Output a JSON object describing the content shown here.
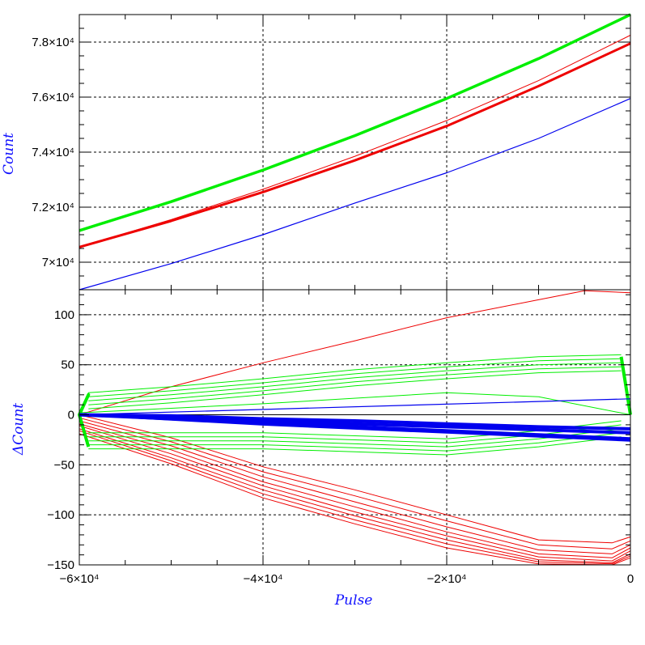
{
  "chart_data": [
    {
      "type": "line",
      "panel": "top",
      "title": "",
      "xlabel": "",
      "ylabel": "Count",
      "xlim": [
        -60000,
        0
      ],
      "ylim": [
        69000,
        79000
      ],
      "grid": true,
      "yticks": [
        {
          "value": 70000,
          "label": "7×10⁴"
        },
        {
          "value": 72000,
          "label": "7.2×10⁴"
        },
        {
          "value": 74000,
          "label": "7.4×10⁴"
        },
        {
          "value": 76000,
          "label": "7.6×10⁴"
        },
        {
          "value": 78000,
          "label": "7.8×10⁴"
        }
      ],
      "series": [
        {
          "color": "#00ee00",
          "width": 3.5,
          "x": [
            -60000,
            -50000,
            -40000,
            -30000,
            -20000,
            -10000,
            0
          ],
          "y": [
            71150,
            72200,
            73350,
            74600,
            75950,
            77400,
            79000
          ]
        },
        {
          "color": "#ee0000",
          "width": 1,
          "x": [
            -60000,
            -50000,
            -40000,
            -30000,
            -20000,
            -10000,
            0
          ],
          "y": [
            70550,
            71550,
            72650,
            73850,
            75150,
            76600,
            78250
          ]
        },
        {
          "color": "#ee0000",
          "width": 3,
          "x": [
            -60000,
            -50000,
            -40000,
            -30000,
            -20000,
            -10000,
            0
          ],
          "y": [
            70550,
            71500,
            72550,
            73700,
            74950,
            76400,
            77950
          ]
        },
        {
          "color": "#0000ee",
          "width": 1.2,
          "x": [
            -60000,
            -50000,
            -40000,
            -30000,
            -20000,
            -10000,
            0
          ],
          "y": [
            69000,
            69950,
            71000,
            72150,
            73250,
            74500,
            75950
          ]
        }
      ]
    },
    {
      "type": "line",
      "panel": "bottom",
      "title": "",
      "xlabel": "Pulse",
      "ylabel": "ΔCount",
      "xlim": [
        -60000,
        0
      ],
      "ylim": [
        -150,
        125
      ],
      "grid": true,
      "xticks": [
        {
          "value": -60000,
          "label": "−6×10⁴"
        },
        {
          "value": -40000,
          "label": "−4×10⁴"
        },
        {
          "value": -20000,
          "label": "−2×10⁴"
        },
        {
          "value": 0,
          "label": "0"
        }
      ],
      "yticks": [
        {
          "value": -150,
          "label": "−150"
        },
        {
          "value": -100,
          "label": "−100"
        },
        {
          "value": -50,
          "label": "−50"
        },
        {
          "value": 0,
          "label": "0"
        },
        {
          "value": 50,
          "label": "50"
        },
        {
          "value": 100,
          "label": "100"
        }
      ],
      "series": [
        {
          "color": "#000000",
          "width": 1,
          "x": [
            -60000,
            0
          ],
          "y": [
            0,
            0
          ]
        },
        {
          "color": "#ee0000",
          "width": 1,
          "x": [
            -60000,
            -50000,
            -40000,
            -30000,
            -20000,
            -10000,
            -5000,
            0
          ],
          "y": [
            0,
            28,
            52,
            74,
            97,
            115,
            124,
            122
          ]
        },
        {
          "color": "#ee0000",
          "width": 1,
          "x": [
            -60000,
            -50000,
            -40000,
            -30000,
            -20000,
            -10000,
            -2000,
            0
          ],
          "y": [
            0,
            -23,
            -52,
            -75,
            -100,
            -125,
            -128,
            -122
          ]
        },
        {
          "color": "#ee0000",
          "width": 1,
          "x": [
            -60000,
            -50000,
            -40000,
            -30000,
            -20000,
            -10000,
            -2000,
            0
          ],
          "y": [
            -3,
            -27,
            -57,
            -81,
            -106,
            -130,
            -134,
            -126
          ]
        },
        {
          "color": "#ee0000",
          "width": 1,
          "x": [
            -60000,
            -50000,
            -40000,
            -30000,
            -20000,
            -10000,
            -2000,
            0
          ],
          "y": [
            -6,
            -31,
            -62,
            -87,
            -112,
            -135,
            -139,
            -130
          ]
        },
        {
          "color": "#ee0000",
          "width": 1,
          "x": [
            -60000,
            -50000,
            -40000,
            -30000,
            -20000,
            -10000,
            -2000,
            0
          ],
          "y": [
            -9,
            -35,
            -67,
            -92,
            -117,
            -139,
            -143,
            -133
          ]
        },
        {
          "color": "#ee0000",
          "width": 1,
          "x": [
            -60000,
            -50000,
            -40000,
            -30000,
            -20000,
            -10000,
            -2000,
            0
          ],
          "y": [
            -11,
            -39,
            -71,
            -97,
            -121,
            -142,
            -146,
            -136
          ]
        },
        {
          "color": "#ee0000",
          "width": 1,
          "x": [
            -60000,
            -50000,
            -40000,
            -30000,
            -20000,
            -10000,
            -2000,
            0
          ],
          "y": [
            -14,
            -43,
            -75,
            -101,
            -125,
            -145,
            -148,
            -139
          ]
        },
        {
          "color": "#ee0000",
          "width": 1,
          "x": [
            -60000,
            -50000,
            -40000,
            -30000,
            -20000,
            -10000,
            -2000,
            0
          ],
          "y": [
            -16,
            -46,
            -79,
            -105,
            -129,
            -147,
            -149,
            -141
          ]
        },
        {
          "color": "#ee0000",
          "width": 1,
          "x": [
            -60000,
            -50000,
            -40000,
            -30000,
            -20000,
            -10000,
            -2000,
            0
          ],
          "y": [
            -19,
            -49,
            -83,
            -109,
            -133,
            -149,
            -150,
            -143
          ]
        },
        {
          "color": "#00ee00",
          "width": 1,
          "x": [
            -60000,
            -59000,
            -50000,
            -40000,
            -30000,
            -20000,
            -10000,
            -1000
          ],
          "y": [
            0,
            22,
            28,
            36,
            45,
            52,
            58,
            60
          ]
        },
        {
          "color": "#00ee00",
          "width": 1,
          "x": [
            -59000,
            -50000,
            -40000,
            -30000,
            -20000,
            -10000,
            -1000
          ],
          "y": [
            18,
            24,
            32,
            41,
            48,
            54,
            56
          ]
        },
        {
          "color": "#00ee00",
          "width": 1,
          "x": [
            -59000,
            -50000,
            -40000,
            -30000,
            -20000,
            -10000,
            -1000
          ],
          "y": [
            14,
            20,
            28,
            37,
            44,
            50,
            52
          ]
        },
        {
          "color": "#00ee00",
          "width": 1,
          "x": [
            -59000,
            -50000,
            -40000,
            -30000,
            -20000,
            -10000,
            -1000
          ],
          "y": [
            10,
            16,
            24,
            33,
            40,
            46,
            48
          ]
        },
        {
          "color": "#00ee00",
          "width": 1,
          "x": [
            -59000,
            -50000,
            -40000,
            -30000,
            -20000,
            -10000,
            -1000
          ],
          "y": [
            6,
            12,
            20,
            29,
            36,
            42,
            44
          ]
        },
        {
          "color": "#00ee00",
          "width": 1,
          "x": [
            -60000,
            -40000,
            -20000,
            -10000,
            0
          ],
          "y": [
            2,
            11,
            22,
            18,
            0
          ]
        },
        {
          "color": "#00ee00",
          "width": 1,
          "x": [
            -59000,
            -50000,
            -40000,
            -30000,
            -20000,
            -10000,
            -1000
          ],
          "y": [
            -34,
            -34,
            -34,
            -37,
            -40,
            -32,
            -22
          ]
        },
        {
          "color": "#00ee00",
          "width": 1,
          "x": [
            -59000,
            -50000,
            -40000,
            -30000,
            -20000,
            -10000,
            -1000
          ],
          "y": [
            -30,
            -30,
            -30,
            -33,
            -36,
            -28,
            -18
          ]
        },
        {
          "color": "#00ee00",
          "width": 1,
          "x": [
            -59000,
            -50000,
            -40000,
            -30000,
            -20000,
            -10000,
            -1000
          ],
          "y": [
            -26,
            -26,
            -26,
            -29,
            -32,
            -24,
            -14
          ]
        },
        {
          "color": "#00ee00",
          "width": 1,
          "x": [
            -59000,
            -50000,
            -40000,
            -30000,
            -20000,
            -10000,
            -1000
          ],
          "y": [
            -22,
            -22,
            -22,
            -25,
            -28,
            -20,
            -10
          ]
        },
        {
          "color": "#00ee00",
          "width": 1,
          "x": [
            -59000,
            -50000,
            -40000,
            -30000,
            -20000,
            -10000,
            -1000
          ],
          "y": [
            -18,
            -18,
            -18,
            -21,
            -24,
            -16,
            -6
          ]
        },
        {
          "color": "#00ee00",
          "width": 4,
          "x": [
            -60000,
            -59000,
            -60000,
            -59000
          ],
          "y": [
            0,
            20,
            0,
            -32
          ]
        },
        {
          "color": "#00ee00",
          "width": 4,
          "x": [
            -1000,
            0
          ],
          "y": [
            58,
            0
          ]
        },
        {
          "color": "#0000ee",
          "width": 1.2,
          "x": [
            -60000,
            0
          ],
          "y": [
            0,
            16
          ]
        },
        {
          "color": "#0000ee",
          "width": 4,
          "x": [
            -60000,
            -50000,
            -40000,
            -30000,
            -20000,
            -10000,
            0
          ],
          "y": [
            0,
            -3,
            -6,
            -9,
            -12,
            -15,
            -18
          ]
        },
        {
          "color": "#0000ee",
          "width": 4,
          "x": [
            -60000,
            -50000,
            -40000,
            -30000,
            -20000,
            -10000,
            0
          ],
          "y": [
            0,
            -1,
            -4,
            -6,
            -9,
            -12,
            -14
          ]
        },
        {
          "color": "#0000ee",
          "width": 4,
          "x": [
            -60000,
            -50000,
            -40000,
            -30000,
            -20000,
            -10000,
            0
          ],
          "y": [
            0,
            -4,
            -8,
            -12,
            -16,
            -20,
            -24
          ]
        },
        {
          "color": "#0000ee",
          "width": 2,
          "x": [
            -60000,
            -50000,
            -40000,
            -30000,
            -20000,
            -10000,
            0
          ],
          "y": [
            0,
            -5,
            -10,
            -14,
            -18,
            -22,
            -26
          ]
        }
      ]
    }
  ]
}
